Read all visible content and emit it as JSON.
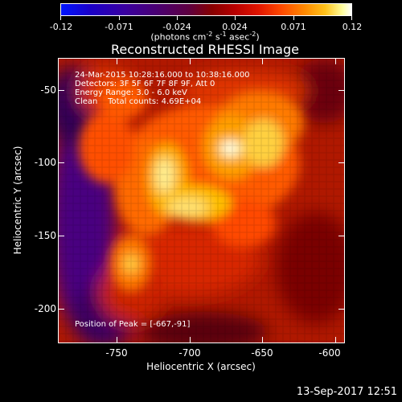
{
  "colorbar": {
    "ticks": [
      "-0.12",
      "-0.071",
      "-0.024",
      "0.024",
      "0.071",
      "0.12"
    ],
    "units_prefix": "(photons cm",
    "units_exp1": "-2",
    "units_mid1": " s",
    "units_exp2": "-1",
    "units_mid2": " asec",
    "units_exp3": "-2",
    "units_suffix": ")"
  },
  "title": "Reconstructed RHESSI Image",
  "info": {
    "line1": "24-Mar-2015 10:28:16.000 to 10:38:16.000",
    "line2": "Detectors: 3F 5F 6F 7F 8F 9F, Att 0",
    "line3": "Energy Range: 3.0 - 6.0 keV",
    "line4": "Clean    Total counts: 4.69E+04",
    "peak": "Position of Peak = [-667,-91]"
  },
  "axes": {
    "xlabel": "Heliocentric X (arcsec)",
    "ylabel": "Heliocentric Y (arcsec)",
    "xticks": [
      "-750",
      "-700",
      "-650",
      "-600"
    ],
    "yticks": [
      "-50",
      "-100",
      "-150",
      "-200"
    ]
  },
  "footer": "13-Sep-2017 12:51",
  "colors": {
    "background": "#000000",
    "text": "#ffffff"
  }
}
